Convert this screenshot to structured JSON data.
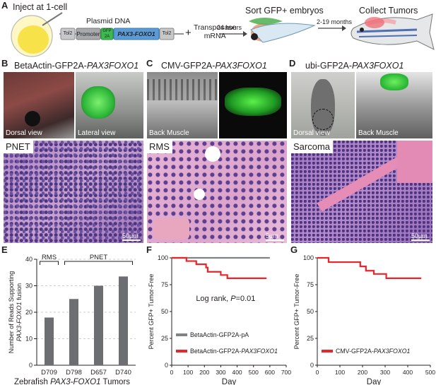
{
  "panel_letters": {
    "A": "A",
    "B": "B",
    "C": "C",
    "D": "D",
    "E": "E",
    "F": "F",
    "G": "G"
  },
  "schematic": {
    "inject": "Inject at 1-cell",
    "plasmid_title": "Plasmid DNA",
    "tol2_left": "Tol2",
    "promoter": "Promoter",
    "gfp_top": "GFP",
    "gfp_bottom": "2A",
    "fusion_gene": "PAX3-FOXO1",
    "tol2_right": "Tol2",
    "plus": "+",
    "transposase_1": "Transposase",
    "transposase_2": "mRNA",
    "arrow1": "24 hours",
    "sort": "Sort GFP+ embryos",
    "arrow2": "2-19 months",
    "collect": "Collect Tumors"
  },
  "panels_bcd": {
    "B": {
      "title_plain": "BetaActin-GFP2A-",
      "title_italic": "PAX3FOXO1",
      "left_caption": "Dorsal view",
      "right_caption": "Lateral view",
      "histo_label": "PNET",
      "scale": "50µm"
    },
    "C": {
      "title_plain": "CMV-GFP2A-",
      "title_italic": "PAX3FOXO1",
      "left_caption": "Back Muscle",
      "histo_label": "RMS",
      "scale": "5µm"
    },
    "D": {
      "title_plain": "ubi-GFP2A-",
      "title_italic": "PAX3FOXO1",
      "left_caption": "Dorsal view",
      "right_caption": "Back Muscle",
      "histo_label": "Sarcoma",
      "scale": "50µm"
    }
  },
  "chart_data": [
    {
      "type": "bar",
      "panel": "E",
      "categories": [
        "D709",
        "D798",
        "D657",
        "D740"
      ],
      "values": [
        18,
        25,
        30,
        33.5
      ],
      "ylim": [
        0,
        40
      ],
      "yticks": [
        0,
        10,
        20,
        30,
        40
      ],
      "ylabel_lines": [
        "Number of Reads Supporting",
        "PAX3-FOXO1 fusion"
      ],
      "xlabel_plain": "Zebrafish ",
      "xlabel_italic": "PAX3-FOXO1",
      "xlabel_tail": " Tumors",
      "groups": [
        {
          "label": "RMS",
          "from": 0,
          "to": 0
        },
        {
          "label": "PNET",
          "from": 1,
          "to": 3
        }
      ],
      "grid": true,
      "bar_color": "#6d6e71"
    },
    {
      "type": "line",
      "panel": "F",
      "xlim": [
        0,
        700
      ],
      "ylim": [
        0,
        100
      ],
      "xticks": [
        0,
        100,
        200,
        300,
        400,
        500,
        600,
        700
      ],
      "yticks": [
        0,
        25,
        50,
        75,
        100
      ],
      "xlabel": "Day",
      "ylabel": "Percent GFP+ Tumor-Free",
      "annotation_plain": "Log rank, ",
      "annotation_p": "P",
      "annotation_tail": "=0.01",
      "series": [
        {
          "name": "BetaActin-GFP2A-pA",
          "color": "#808285",
          "step": [
            [
              0,
              100
            ],
            [
              600,
              100
            ]
          ]
        },
        {
          "name_plain": "BetaActin-GFP2A-",
          "name_italic": "PAX3FOXO1",
          "color": "#e8262a",
          "step": [
            [
              0,
              100
            ],
            [
              90,
              100
            ],
            [
              90,
              97
            ],
            [
              150,
              97
            ],
            [
              150,
              94
            ],
            [
              210,
              94
            ],
            [
              210,
              91
            ],
            [
              220,
              91
            ],
            [
              220,
              87
            ],
            [
              300,
              87
            ],
            [
              300,
              84
            ],
            [
              340,
              84
            ],
            [
              340,
              81
            ],
            [
              580,
              81
            ]
          ]
        }
      ]
    },
    {
      "type": "line",
      "panel": "G",
      "xlim": [
        0,
        500
      ],
      "ylim": [
        0,
        100
      ],
      "xticks": [
        0,
        100,
        200,
        300,
        400,
        500
      ],
      "yticks": [
        0,
        25,
        50,
        75,
        100
      ],
      "xlabel": "Day",
      "ylabel": "Percent GFP+ Tumor-Free",
      "series": [
        {
          "name_plain": "CMV-GFP2A-",
          "name_italic": "PAX3FOXO1",
          "color": "#e8262a",
          "step": [
            [
              0,
              100
            ],
            [
              50,
              100
            ],
            [
              50,
              96
            ],
            [
              190,
              96
            ],
            [
              190,
              92
            ],
            [
              215,
              92
            ],
            [
              215,
              88
            ],
            [
              250,
              88
            ],
            [
              250,
              85
            ],
            [
              305,
              85
            ],
            [
              305,
              81
            ],
            [
              460,
              81
            ]
          ]
        }
      ]
    }
  ],
  "colors": {
    "gfp": "#3dba4e",
    "fusion": "#5b9bd5",
    "red": "#e8262a",
    "grey": "#808285",
    "he_pink": "#d9a0c8",
    "he_purple": "#5a3f8a"
  }
}
